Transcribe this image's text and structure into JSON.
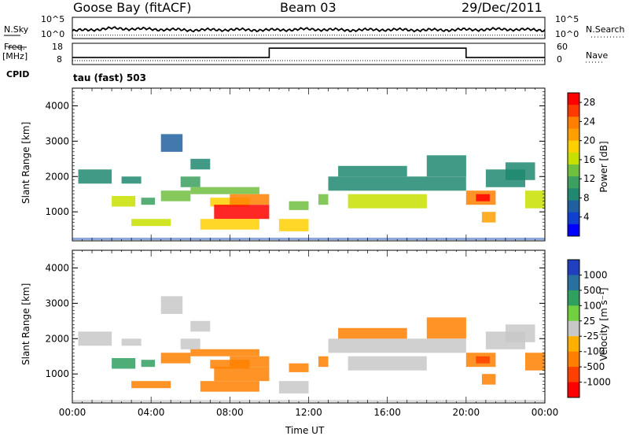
{
  "header": {
    "station": "Goose Bay (fitACF)",
    "beam": "Beam 03",
    "date": "29/Dec/2011"
  },
  "noise_panel": {
    "left_label": "N.Sky",
    "right_label": "N.Search",
    "left_ticks": [
      "10^5",
      "10^0"
    ],
    "right_ticks": [
      "10^5",
      "10^0"
    ]
  },
  "freq_panel": {
    "left_label_1": "Freq.",
    "left_label_2": "[MHz]",
    "right_label": "Nave",
    "left_ticks": [
      "18",
      "8"
    ],
    "right_ticks": [
      "60",
      "0"
    ]
  },
  "cpid": {
    "label": "CPID",
    "mode": "tau (fast) 503"
  },
  "power_colorbar": {
    "title": "Power [dB]",
    "ticks": [
      "28",
      "24",
      "20",
      "16",
      "12",
      "8",
      "4"
    ],
    "colors": [
      "#ff0000",
      "#ff3a00",
      "#ff8000",
      "#ffa000",
      "#ffd000",
      "#c8e000",
      "#70c040",
      "#3ca060",
      "#208870",
      "#2060a0",
      "#1040d0",
      "#0000ff"
    ]
  },
  "velocity_colorbar": {
    "title": "Velocity [m s⁻¹]",
    "ticks": [
      "1000",
      "500",
      "100",
      "25",
      "-25",
      "-100",
      "-500",
      "-1000"
    ],
    "colors": [
      "#2040c0",
      "#2870a0",
      "#30a060",
      "#70d040",
      "#c8c8c8",
      "#ffb000",
      "#ff8000",
      "#ff4000",
      "#ff0000"
    ]
  },
  "axes": {
    "ylabel": "Slant Range [km]",
    "xlabel": "Time UT",
    "x_ticks": [
      "00:00",
      "04:00",
      "08:00",
      "12:00",
      "16:00",
      "20:00",
      "00:00"
    ],
    "y_ticks": [
      "4000",
      "3000",
      "2000",
      "1000"
    ]
  },
  "chart_data": [
    {
      "type": "line",
      "title": "Goose Bay (fitACF)",
      "x_unit": "hours UT",
      "xlim": [
        0,
        24
      ],
      "series": [
        {
          "x": [
            0,
            2,
            4,
            6,
            8,
            10,
            12,
            14,
            16,
            18,
            20,
            22,
            24
          ],
          "y": [
            1.8,
            2.4,
            2.2,
            2.0,
            2.1,
            2.0,
            2.2,
            2.0,
            2.1,
            2.0,
            2.1,
            2.2,
            2.0
          ]
        }
      ]
    },
    {
      "type": "line",
      "title": "Freq. [MHz]",
      "xlim": [
        0,
        24
      ],
      "ylim": [
        8,
        18
      ],
      "series": [
        {
          "x": [
            0,
            10,
            10,
            20,
            20,
            24
          ],
          "y": [
            11.3,
            11.3,
            15.7,
            15.7,
            11.3,
            11.3
          ]
        }
      ]
    },
    {
      "type": "heatmap",
      "title": "Power [dB]",
      "xlabel": "Time UT",
      "ylabel": "Slant Range [km]",
      "xlim": [
        0,
        24
      ],
      "ylim": [
        180,
        4500
      ],
      "cells": [
        [
          0.3,
          2.0,
          1800,
          2200,
          8
        ],
        [
          2.0,
          3.2,
          1150,
          1450,
          16
        ],
        [
          2.5,
          3.5,
          1800,
          2000,
          8
        ],
        [
          3.5,
          4.2,
          1200,
          1400,
          12
        ],
        [
          4.5,
          5.6,
          2700,
          3200,
          6
        ],
        [
          5.5,
          6.5,
          1700,
          2000,
          12
        ],
        [
          6.0,
          7.0,
          2200,
          2500,
          10
        ],
        [
          3.0,
          5.0,
          600,
          800,
          16
        ],
        [
          4.5,
          6.0,
          1300,
          1600,
          14
        ],
        [
          6.0,
          9.5,
          1500,
          1700,
          14
        ],
        [
          7.0,
          9.0,
          1150,
          1400,
          18
        ],
        [
          7.2,
          10.0,
          800,
          1200,
          28
        ],
        [
          8.0,
          10.0,
          1200,
          1500,
          24
        ],
        [
          6.5,
          9.5,
          500,
          800,
          20
        ],
        [
          10.5,
          12.0,
          450,
          800,
          18
        ],
        [
          11.0,
          12.0,
          1050,
          1300,
          14
        ],
        [
          12.5,
          13.0,
          1200,
          1500,
          14
        ],
        [
          13.0,
          20.0,
          1600,
          2000,
          10
        ],
        [
          14.0,
          18.0,
          1100,
          1500,
          16
        ],
        [
          13.5,
          17.0,
          2000,
          2300,
          8
        ],
        [
          18.0,
          20.0,
          2000,
          2600,
          8
        ],
        [
          20.0,
          21.5,
          1200,
          1600,
          24
        ],
        [
          20.5,
          21.2,
          1300,
          1500,
          28
        ],
        [
          21.0,
          23.0,
          1700,
          2200,
          8
        ],
        [
          22.0,
          23.5,
          1900,
          2400,
          10
        ],
        [
          23.0,
          24.0,
          1100,
          1600,
          16
        ],
        [
          20.8,
          21.5,
          700,
          1000,
          22
        ]
      ]
    },
    {
      "type": "heatmap",
      "title": "Velocity [m s⁻¹]",
      "xlabel": "Time UT",
      "ylabel": "Slant Range [km]",
      "xlim": [
        0,
        24
      ],
      "ylim": [
        180,
        4500
      ],
      "cells": [
        [
          0.3,
          2.0,
          1800,
          2200,
          10
        ],
        [
          2.0,
          3.2,
          1150,
          1450,
          120
        ],
        [
          2.5,
          3.5,
          1800,
          2000,
          0
        ],
        [
          3.5,
          4.2,
          1200,
          1400,
          150
        ],
        [
          4.5,
          5.6,
          2700,
          3200,
          0
        ],
        [
          5.5,
          6.5,
          1700,
          2000,
          0
        ],
        [
          6.0,
          7.0,
          2200,
          2500,
          0
        ],
        [
          3.0,
          5.0,
          600,
          800,
          -150
        ],
        [
          4.5,
          6.0,
          1300,
          1600,
          -120
        ],
        [
          6.0,
          9.5,
          1500,
          1700,
          -300
        ],
        [
          7.0,
          9.0,
          1150,
          1400,
          -350
        ],
        [
          7.2,
          10.0,
          800,
          1200,
          -300
        ],
        [
          8.0,
          10.0,
          1200,
          1500,
          -250
        ],
        [
          6.5,
          9.5,
          500,
          800,
          -150
        ],
        [
          10.5,
          12.0,
          450,
          800,
          0
        ],
        [
          11.0,
          12.0,
          1050,
          1300,
          -120
        ],
        [
          12.5,
          13.0,
          1200,
          1500,
          -200
        ],
        [
          13.0,
          20.0,
          1600,
          2000,
          0
        ],
        [
          14.0,
          18.0,
          1100,
          1500,
          0
        ],
        [
          13.5,
          17.0,
          2000,
          2300,
          -120
        ],
        [
          18.0,
          20.0,
          2000,
          2600,
          -150
        ],
        [
          20.0,
          21.5,
          1200,
          1600,
          -300
        ],
        [
          20.5,
          21.2,
          1300,
          1500,
          -600
        ],
        [
          21.0,
          23.0,
          1700,
          2200,
          0
        ],
        [
          22.0,
          23.5,
          1900,
          2400,
          0
        ],
        [
          23.0,
          24.0,
          1100,
          1600,
          -300
        ],
        [
          20.8,
          21.5,
          700,
          1000,
          -400
        ]
      ]
    }
  ]
}
